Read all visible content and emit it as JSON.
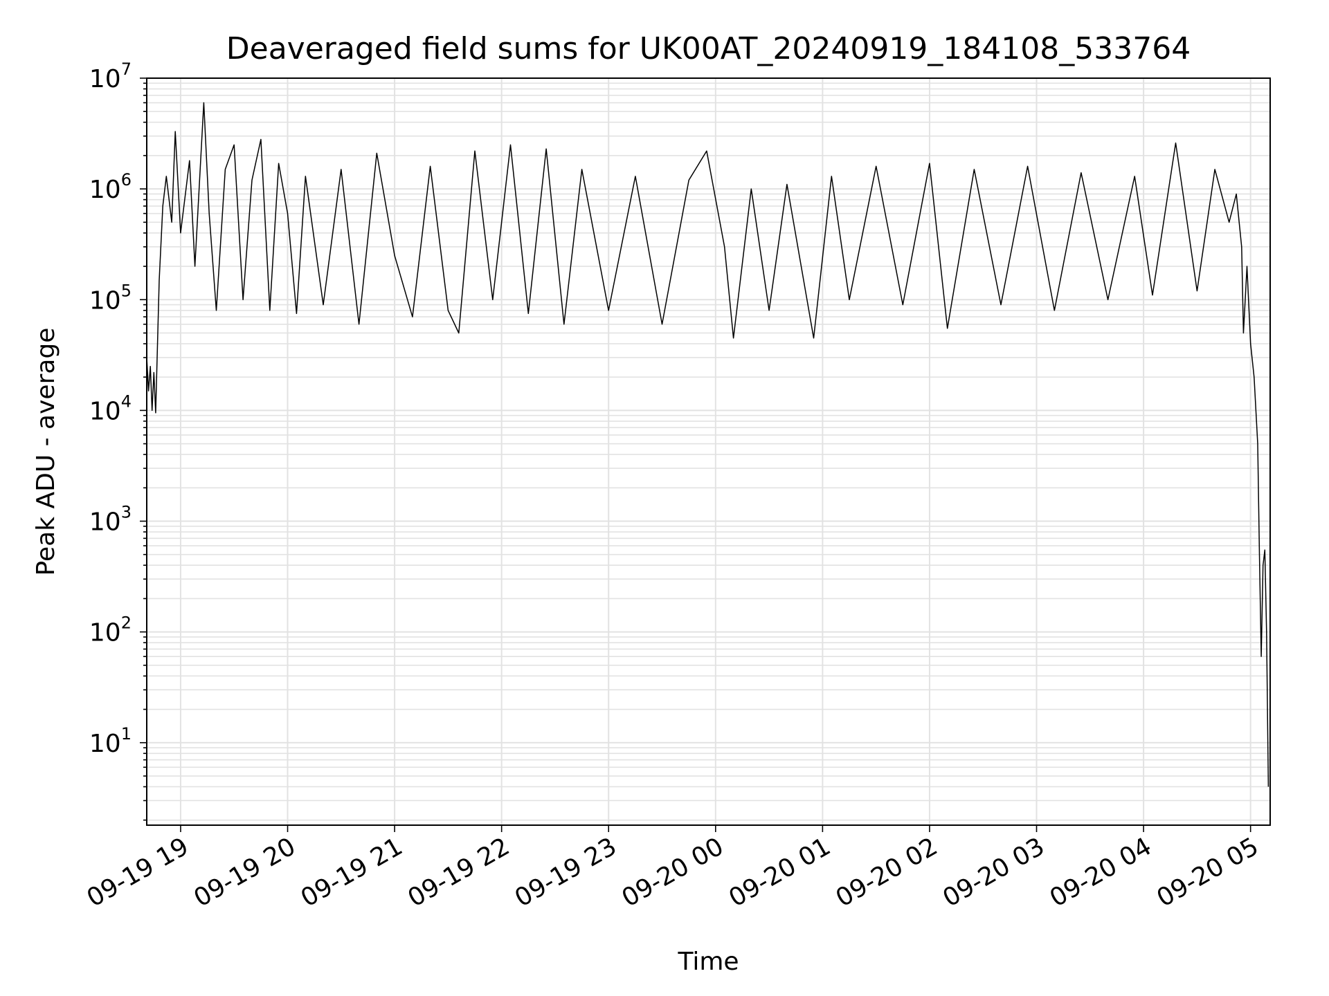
{
  "chart_data": {
    "type": "line",
    "title": "Deaveraged field sums for UK00AT_20240919_184108_533764",
    "xlabel": "Time",
    "ylabel": "Peak ADU - average",
    "yscale": "log",
    "ylim": [
      1.8,
      10000000
    ],
    "y_major_ticks": [
      {
        "value": 10,
        "base": "10",
        "exp": "1"
      },
      {
        "value": 100,
        "base": "10",
        "exp": "2"
      },
      {
        "value": 1000,
        "base": "10",
        "exp": "3"
      },
      {
        "value": 10000,
        "base": "10",
        "exp": "4"
      },
      {
        "value": 100000,
        "base": "10",
        "exp": "5"
      },
      {
        "value": 1000000,
        "base": "10",
        "exp": "6"
      },
      {
        "value": 10000000,
        "base": "10",
        "exp": "7"
      }
    ],
    "xlim": [
      "2024-09-19 18:41",
      "2024-09-20 05:11"
    ],
    "x_ticks": [
      {
        "time": "2024-09-19 19:00",
        "label": "09-19 19"
      },
      {
        "time": "2024-09-19 20:00",
        "label": "09-19 20"
      },
      {
        "time": "2024-09-19 21:00",
        "label": "09-19 21"
      },
      {
        "time": "2024-09-19 22:00",
        "label": "09-19 22"
      },
      {
        "time": "2024-09-19 23:00",
        "label": "09-19 23"
      },
      {
        "time": "2024-09-20 00:00",
        "label": "09-20 00"
      },
      {
        "time": "2024-09-20 01:00",
        "label": "09-20 01"
      },
      {
        "time": "2024-09-20 02:00",
        "label": "09-20 02"
      },
      {
        "time": "2024-09-20 03:00",
        "label": "09-20 03"
      },
      {
        "time": "2024-09-20 04:00",
        "label": "09-20 04"
      },
      {
        "time": "2024-09-20 05:00",
        "label": "09-20 05"
      }
    ],
    "grid": true,
    "series": [
      {
        "color": "#000000",
        "points": [
          [
            "2024-09-19 18:41",
            30000
          ],
          [
            "2024-09-19 18:42",
            15000
          ],
          [
            "2024-09-19 18:43",
            25000
          ],
          [
            "2024-09-19 18:44",
            10000
          ],
          [
            "2024-09-19 18:45",
            22000
          ],
          [
            "2024-09-19 18:46",
            9500
          ],
          [
            "2024-09-19 18:48",
            150000
          ],
          [
            "2024-09-19 18:50",
            700000
          ],
          [
            "2024-09-19 18:52",
            1300000
          ],
          [
            "2024-09-19 18:55",
            500000
          ],
          [
            "2024-09-19 18:57",
            3300000
          ],
          [
            "2024-09-19 19:00",
            400000
          ],
          [
            "2024-09-19 19:05",
            1800000
          ],
          [
            "2024-09-19 19:08",
            200000
          ],
          [
            "2024-09-19 19:13",
            6000000
          ],
          [
            "2024-09-19 19:16",
            600000
          ],
          [
            "2024-09-19 19:20",
            80000
          ],
          [
            "2024-09-19 19:25",
            1500000
          ],
          [
            "2024-09-19 19:30",
            2500000
          ],
          [
            "2024-09-19 19:35",
            100000
          ],
          [
            "2024-09-19 19:40",
            1200000
          ],
          [
            "2024-09-19 19:45",
            2800000
          ],
          [
            "2024-09-19 19:50",
            80000
          ],
          [
            "2024-09-19 19:55",
            1700000
          ],
          [
            "2024-09-19 20:00",
            600000
          ],
          [
            "2024-09-19 20:05",
            75000
          ],
          [
            "2024-09-19 20:10",
            1300000
          ],
          [
            "2024-09-19 20:20",
            90000
          ],
          [
            "2024-09-19 20:30",
            1500000
          ],
          [
            "2024-09-19 20:40",
            60000
          ],
          [
            "2024-09-19 20:50",
            2100000
          ],
          [
            "2024-09-19 21:00",
            250000
          ],
          [
            "2024-09-19 21:10",
            70000
          ],
          [
            "2024-09-19 21:20",
            1600000
          ],
          [
            "2024-09-19 21:30",
            80000
          ],
          [
            "2024-09-19 21:36",
            50000
          ],
          [
            "2024-09-19 21:45",
            2200000
          ],
          [
            "2024-09-19 21:55",
            100000
          ],
          [
            "2024-09-19 22:05",
            2500000
          ],
          [
            "2024-09-19 22:15",
            75000
          ],
          [
            "2024-09-19 22:25",
            2300000
          ],
          [
            "2024-09-19 22:35",
            60000
          ],
          [
            "2024-09-19 22:45",
            1500000
          ],
          [
            "2024-09-19 23:00",
            80000
          ],
          [
            "2024-09-19 23:15",
            1300000
          ],
          [
            "2024-09-19 23:30",
            60000
          ],
          [
            "2024-09-19 23:45",
            1200000
          ],
          [
            "2024-09-19 23:55",
            2200000
          ],
          [
            "2024-09-20 00:05",
            300000
          ],
          [
            "2024-09-20 00:10",
            45000
          ],
          [
            "2024-09-20 00:20",
            1000000
          ],
          [
            "2024-09-20 00:30",
            80000
          ],
          [
            "2024-09-20 00:40",
            1100000
          ],
          [
            "2024-09-20 00:55",
            45000
          ],
          [
            "2024-09-20 01:05",
            1300000
          ],
          [
            "2024-09-20 01:15",
            100000
          ],
          [
            "2024-09-20 01:30",
            1600000
          ],
          [
            "2024-09-20 01:45",
            90000
          ],
          [
            "2024-09-20 02:00",
            1700000
          ],
          [
            "2024-09-20 02:10",
            55000
          ],
          [
            "2024-09-20 02:25",
            1500000
          ],
          [
            "2024-09-20 02:40",
            90000
          ],
          [
            "2024-09-20 02:55",
            1600000
          ],
          [
            "2024-09-20 03:10",
            80000
          ],
          [
            "2024-09-20 03:25",
            1400000
          ],
          [
            "2024-09-20 03:40",
            100000
          ],
          [
            "2024-09-20 03:55",
            1300000
          ],
          [
            "2024-09-20 04:05",
            110000
          ],
          [
            "2024-09-20 04:18",
            2600000
          ],
          [
            "2024-09-20 04:30",
            120000
          ],
          [
            "2024-09-20 04:40",
            1500000
          ],
          [
            "2024-09-20 04:48",
            500000
          ],
          [
            "2024-09-20 04:52",
            900000
          ],
          [
            "2024-09-20 04:55",
            300000
          ],
          [
            "2024-09-20 04:56",
            50000
          ],
          [
            "2024-09-20 04:58",
            200000
          ],
          [
            "2024-09-20 05:00",
            40000
          ],
          [
            "2024-09-20 05:02",
            20000
          ],
          [
            "2024-09-20 05:04",
            5000
          ],
          [
            "2024-09-20 05:05",
            500
          ],
          [
            "2024-09-20 05:06",
            60
          ],
          [
            "2024-09-20 05:07",
            400
          ],
          [
            "2024-09-20 05:08",
            550
          ],
          [
            "2024-09-20 05:09",
            100
          ],
          [
            "2024-09-20 05:10",
            4
          ]
        ]
      }
    ]
  }
}
